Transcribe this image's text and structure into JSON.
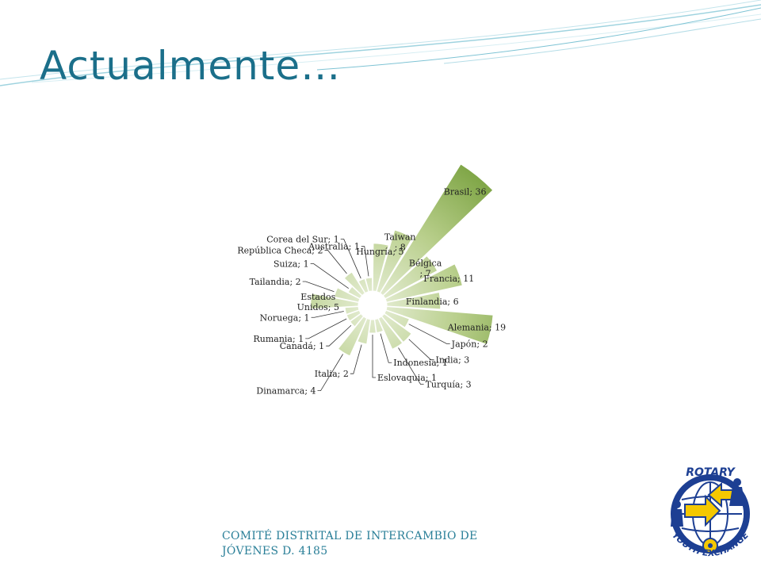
{
  "slide": {
    "title": "Actualmente…",
    "footer": "COMITÉ DISTRITAL DE INTERCAMBIO DE JÓVENES D. 4185"
  },
  "logo": {
    "text_top": "ROTARY",
    "text_bottom": "YOUTH EXCHANGE"
  },
  "colors": {
    "title": "#1b6f8a",
    "footer": "#2a7f98",
    "slice_dark": "#6f9a33",
    "slice_light": "#e7efd6",
    "logo_blue": "#1d3f93",
    "logo_yellow": "#f5c800"
  },
  "chart_data": {
    "type": "pie",
    "title": "",
    "variant": "polar-area (radius proportional to value)",
    "data_labels": "category; value",
    "legend": "none",
    "slices": [
      {
        "label": "Hungría",
        "value": 5
      },
      {
        "label": "Taiwan",
        "value": 8
      },
      {
        "label": "Brasil",
        "value": 36
      },
      {
        "label": "Bélgica",
        "value": 7
      },
      {
        "label": "Francia",
        "value": 11
      },
      {
        "label": "Finlandia",
        "value": 6
      },
      {
        "label": "Alemania",
        "value": 19
      },
      {
        "label": "Japón",
        "value": 2
      },
      {
        "label": "India",
        "value": 3
      },
      {
        "label": "Turquía",
        "value": 3
      },
      {
        "label": "Indonesia",
        "value": 1
      },
      {
        "label": "Eslovaquia",
        "value": 1
      },
      {
        "label": "Italia",
        "value": 2
      },
      {
        "label": "Dinamarca",
        "value": 4
      },
      {
        "label": "Canadá",
        "value": 1
      },
      {
        "label": "Rumania",
        "value": 1
      },
      {
        "label": "Noruega",
        "value": 1
      },
      {
        "label": "Estados Unidos",
        "value": 5
      },
      {
        "label": "Tailandia",
        "value": 2
      },
      {
        "label": "Suiza",
        "value": 1
      },
      {
        "label": "República Checa",
        "value": 2
      },
      {
        "label": "Corea del Sur",
        "value": 1
      },
      {
        "label": "Australia",
        "value": 1
      }
    ],
    "labels": [
      {
        "lines": [
          "Hungría; 5"
        ]
      },
      {
        "lines": [
          "Taiwan",
          "; 8"
        ]
      },
      {
        "lines": [
          "Brasil; 36"
        ]
      },
      {
        "lines": [
          "Bélgica",
          "; 7"
        ]
      },
      {
        "lines": [
          "Francia; 11"
        ]
      },
      {
        "lines": [
          "Finlandia; 6"
        ]
      },
      {
        "lines": [
          "Alemania; 19"
        ]
      },
      {
        "lines": [
          "Japón; 2"
        ]
      },
      {
        "lines": [
          "India; 3"
        ]
      },
      {
        "lines": [
          "Turquía; 3"
        ]
      },
      {
        "lines": [
          "Indonesia; 1"
        ]
      },
      {
        "lines": [
          "Eslovaquia; 1"
        ]
      },
      {
        "lines": [
          "Italia; 2"
        ]
      },
      {
        "lines": [
          "Dinamarca; 4"
        ]
      },
      {
        "lines": [
          "Canadá; 1"
        ]
      },
      {
        "lines": [
          "Rumania; 1"
        ]
      },
      {
        "lines": [
          "Noruega; 1"
        ]
      },
      {
        "lines": [
          "Estados",
          "Unidos; 5"
        ]
      },
      {
        "lines": [
          "Tailandia; 2"
        ]
      },
      {
        "lines": [
          "Suiza; 1"
        ]
      },
      {
        "lines": [
          "República  Checa; 2"
        ]
      },
      {
        "lines": [
          "Corea del Sur; 1"
        ]
      },
      {
        "lines": [
          "Australia; 1"
        ]
      }
    ]
  }
}
